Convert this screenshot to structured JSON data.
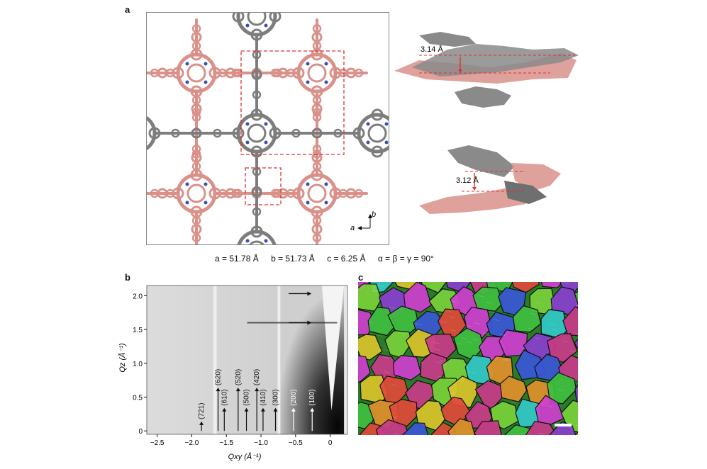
{
  "panels": {
    "a": "a",
    "b": "b",
    "c": "c"
  },
  "panel_a": {
    "axis_labels": {
      "b": "b",
      "a": "a"
    },
    "distances": {
      "top": "3.14 Å",
      "bottom": "3.12 Å"
    },
    "cell_params": {
      "a": "a = 51.78 Å",
      "b": "b = 51.73 Å",
      "c": "c = 6.25 Å",
      "angles": "α = β = γ = 90°"
    },
    "colors": {
      "framework_pink": "#d9918a",
      "framework_grey": "#7d7d7d",
      "highlight": "#e0302f",
      "nitrogen": "#3a4fb0"
    }
  },
  "panel_b": {
    "xlabel": "Qxy (Å⁻¹)",
    "ylabel": "Qz (Å⁻¹)",
    "xticks": [
      "−2.5",
      "−2.0",
      "−1.5",
      "−1.0",
      "−0.5",
      "0"
    ],
    "yticks": [
      "0",
      "0.5",
      "1.0",
      "1.5",
      "2.0"
    ],
    "peak_labels": [
      "(721)",
      "(620)",
      "(610)",
      "(520)",
      "(500)",
      "(420)",
      "(410)",
      "(300)",
      "(200)",
      "(100)"
    ]
  },
  "chart_data": {
    "type": "heatmap",
    "title": "",
    "xlabel": "Qxy (Å⁻¹)",
    "ylabel": "Qz (Å⁻¹)",
    "xlim": [
      -2.65,
      0.25
    ],
    "ylim": [
      -0.05,
      2.15
    ],
    "peaks": [
      {
        "label": "(721)",
        "qxy": -1.86
      },
      {
        "label": "(620)",
        "qxy": -1.62
      },
      {
        "label": "(610)",
        "qxy": -1.53
      },
      {
        "label": "(520)",
        "qxy": -1.33
      },
      {
        "label": "(500)",
        "qxy": -1.21
      },
      {
        "label": "(420)",
        "qxy": -1.06
      },
      {
        "label": "(410)",
        "qxy": -0.97
      },
      {
        "label": "(300)",
        "qxy": -0.79
      },
      {
        "label": "(200)",
        "qxy": -0.53
      },
      {
        "label": "(100)",
        "qxy": -0.26
      }
    ],
    "out_of_plane_arrows_qz": [
      2.03,
      1.6
    ]
  }
}
